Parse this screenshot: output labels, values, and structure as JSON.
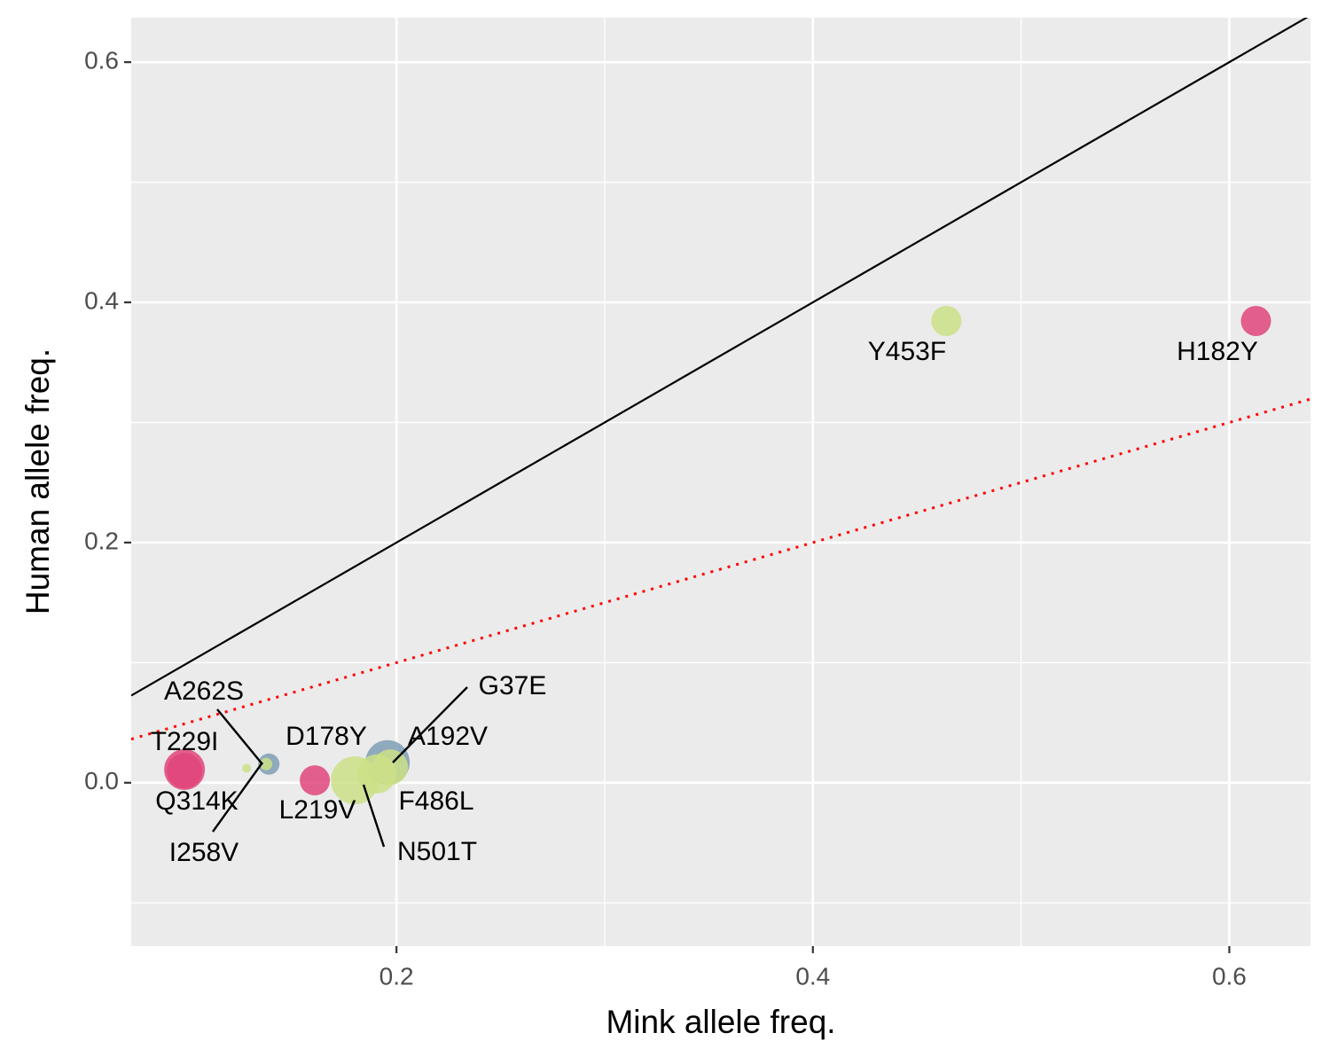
{
  "chart_data": {
    "type": "scatter",
    "x_label": "Mink allele freq.",
    "y_label": "Human allele freq.",
    "xlim": [
      0.0726,
      0.639
    ],
    "ylim": [
      -0.136,
      0.637
    ],
    "xticks": [
      0.2,
      0.4,
      0.6
    ],
    "yticks": [
      {
        "value": 0,
        "label": "0.0"
      },
      0.2,
      0.4,
      0.6
    ],
    "minor_xticks": [
      0.3,
      0.5
    ],
    "minor_yticks": [
      -0.1,
      0.1,
      0.3,
      0.5
    ],
    "grid": true,
    "reference_lines": [
      {
        "slope": 1,
        "intercept": 0,
        "color": "#000000",
        "dash": "solid"
      },
      {
        "slope": 0.5,
        "intercept": 0,
        "color": "#ff0000",
        "dash": "dotted"
      }
    ],
    "points": [
      {
        "label": "A262S",
        "x": 0.1387,
        "y": 0.0155,
        "size": 12,
        "color": "#7f9db5"
      },
      {
        "label": "A192V",
        "x": 0.1957,
        "y": 0.017,
        "size": 25,
        "color": "#7f9db5"
      },
      {
        "label": "T229I",
        "x": 0.0982,
        "y": 0.011,
        "size": 23,
        "color": "#e0457b"
      },
      {
        "label": "Q314K",
        "x": 0.0982,
        "y": 0.01,
        "size": 20,
        "color": "#e0457b"
      },
      {
        "label": "L219V",
        "x": 0.1608,
        "y": 0.002,
        "size": 17,
        "color": "#e0457b"
      },
      {
        "label": "N501T",
        "x": 0.18,
        "y": 0.002,
        "size": 27,
        "color": "#cbe086"
      },
      {
        "label": "F486L",
        "x": 0.1906,
        "y": 0.0074,
        "size": 22,
        "color": "#cbe086"
      },
      {
        "label": "G37E",
        "x": 0.197,
        "y": 0.013,
        "size": 20,
        "color": "#cbe086"
      },
      {
        "label": "I258V",
        "x": 0.1374,
        "y": 0.0155,
        "size": 7,
        "color": "#cbe086"
      },
      {
        "label": "D178Y",
        "x": 0.128,
        "y": 0.012,
        "size": 5,
        "color": "#cbe086"
      },
      {
        "label": "Y453F",
        "x": 0.4641,
        "y": 0.3845,
        "size": 17,
        "color": "#cbe086"
      },
      {
        "label": "H182Y",
        "x": 0.6128,
        "y": 0.3845,
        "size": 17,
        "color": "#e0457b"
      }
    ]
  }
}
